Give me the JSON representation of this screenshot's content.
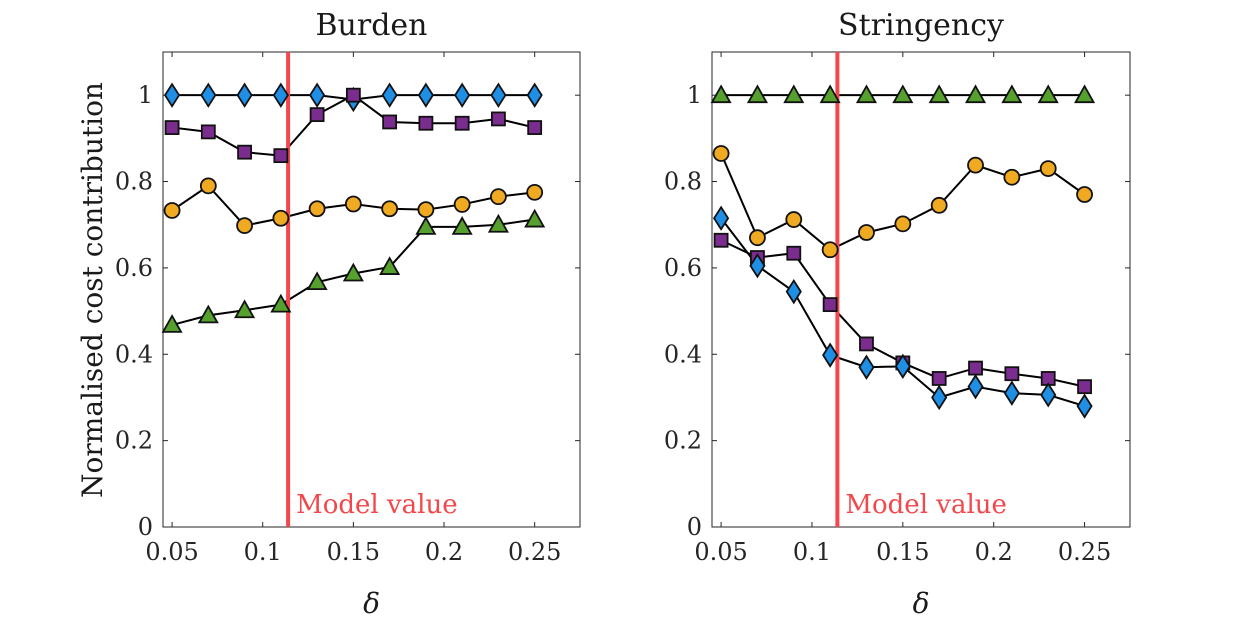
{
  "figure": {
    "ylabel": "Normalised cost contribution",
    "xlabel": "δ",
    "annotation": "Model value",
    "model_value": 0.114,
    "colors": {
      "model_line": "#f2484c",
      "diamond": "#1f8fe6",
      "square": "#7b2c8f",
      "circle": "#f0aa22",
      "triangle": "#56a12e",
      "axis": "#262626"
    }
  },
  "chart_data": [
    {
      "type": "line",
      "title": "Burden",
      "xlim": [
        0.045,
        0.275
      ],
      "ylim": [
        0,
        1.1
      ],
      "xticks": [
        0.05,
        0.1,
        0.15,
        0.2,
        0.25
      ],
      "xticklabels": [
        "0.05",
        "0.1",
        "0.15",
        "0.2",
        "0.25"
      ],
      "yticks": [
        0,
        0.2,
        0.4,
        0.6,
        0.8,
        1
      ],
      "yticklabels": [
        "0",
        "0.2",
        "0.4",
        "0.6",
        "0.8",
        "1"
      ],
      "x": [
        0.05,
        0.07,
        0.09,
        0.11,
        0.13,
        0.15,
        0.17,
        0.19,
        0.21,
        0.23,
        0.25
      ],
      "series": [
        {
          "marker": "diamond",
          "values": [
            1.0,
            1.0,
            1.0,
            1.0,
            1.0,
            0.99,
            1.0,
            1.0,
            1.0,
            1.0,
            1.0
          ]
        },
        {
          "marker": "square",
          "values": [
            0.925,
            0.915,
            0.868,
            0.86,
            0.955,
            1.0,
            0.938,
            0.935,
            0.935,
            0.945,
            0.925
          ]
        },
        {
          "marker": "circle",
          "values": [
            0.733,
            0.79,
            0.698,
            0.715,
            0.737,
            0.748,
            0.737,
            0.735,
            0.747,
            0.765,
            0.775
          ]
        },
        {
          "marker": "triangle",
          "values": [
            0.468,
            0.49,
            0.502,
            0.515,
            0.567,
            0.587,
            0.602,
            0.695,
            0.695,
            0.7,
            0.712
          ]
        }
      ]
    },
    {
      "type": "line",
      "title": "Stringency",
      "xlim": [
        0.045,
        0.275
      ],
      "ylim": [
        0,
        1.1
      ],
      "xticks": [
        0.05,
        0.1,
        0.15,
        0.2,
        0.25
      ],
      "xticklabels": [
        "0.05",
        "0.1",
        "0.15",
        "0.2",
        "0.25"
      ],
      "yticks": [
        0,
        0.2,
        0.4,
        0.6,
        0.8,
        1
      ],
      "yticklabels": [
        "0",
        "0.2",
        "0.4",
        "0.6",
        "0.8",
        "1"
      ],
      "x": [
        0.05,
        0.07,
        0.09,
        0.11,
        0.13,
        0.15,
        0.17,
        0.19,
        0.21,
        0.23,
        0.25
      ],
      "series": [
        {
          "marker": "triangle",
          "values": [
            1.0,
            1.0,
            1.0,
            1.0,
            1.0,
            1.0,
            1.0,
            1.0,
            1.0,
            1.0,
            1.0
          ]
        },
        {
          "marker": "circle",
          "values": [
            0.865,
            0.67,
            0.712,
            0.642,
            0.682,
            0.702,
            0.745,
            0.838,
            0.81,
            0.83,
            0.77
          ]
        },
        {
          "marker": "square",
          "values": [
            0.664,
            0.624,
            0.634,
            0.515,
            0.424,
            0.38,
            0.344,
            0.368,
            0.355,
            0.344,
            0.325
          ]
        },
        {
          "marker": "diamond",
          "values": [
            0.715,
            0.605,
            0.545,
            0.398,
            0.37,
            0.372,
            0.3,
            0.325,
            0.31,
            0.306,
            0.28
          ]
        }
      ]
    }
  ]
}
